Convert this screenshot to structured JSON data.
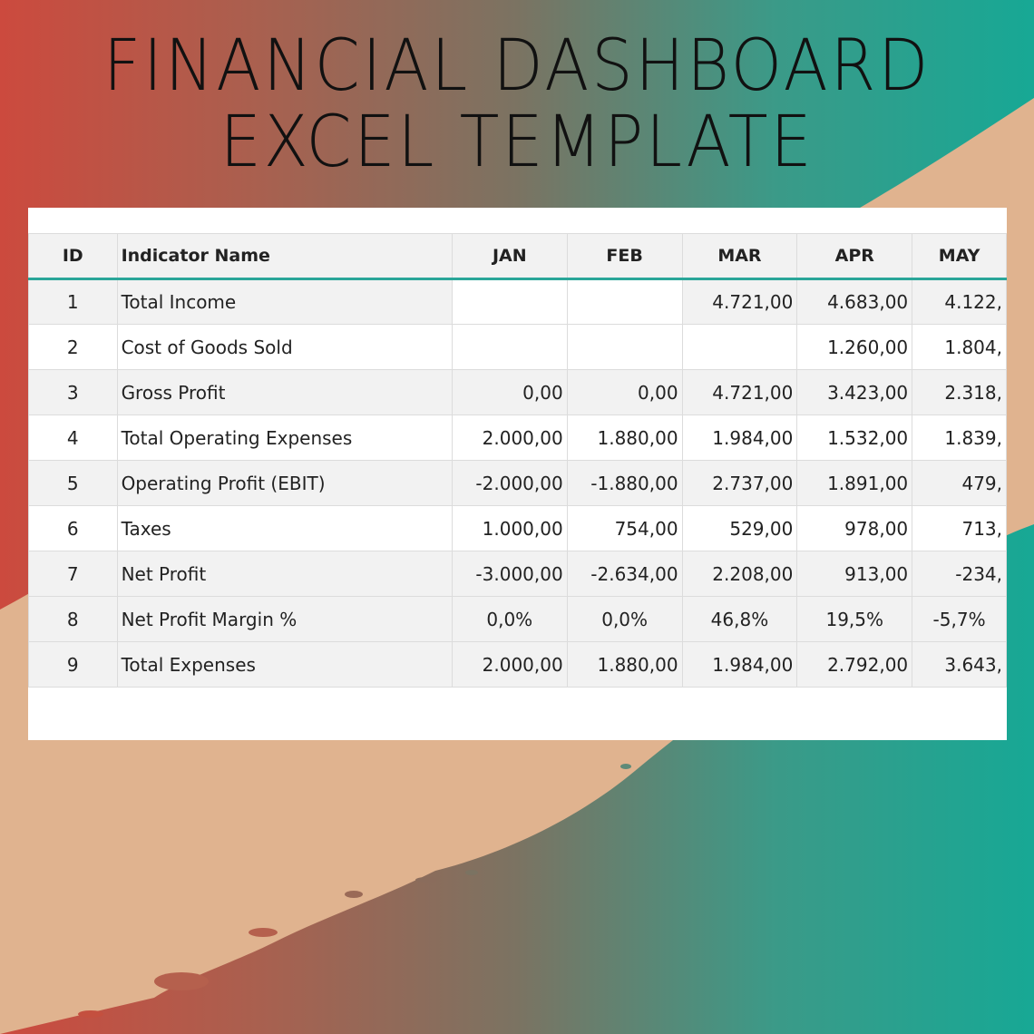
{
  "title_line1": "FINANCIAL DASHBOARD",
  "title_line2": "EXCEL TEMPLATE",
  "colors": {
    "accent": "#2aa699",
    "gradient_left": "#cc4a3e",
    "gradient_right": "#17a895",
    "brush": "#e0b38f"
  },
  "table": {
    "headers": [
      "ID",
      "Indicator Name",
      "JAN",
      "FEB",
      "MAR",
      "APR",
      "MAY"
    ],
    "rows": [
      {
        "id": "1",
        "name": "Total Income",
        "jan": "",
        "feb": "",
        "mar": "4.721,00",
        "apr": "4.683,00",
        "may": "4.122,"
      },
      {
        "id": "2",
        "name": "Cost of Goods Sold",
        "jan": "",
        "feb": "",
        "mar": "",
        "apr": "1.260,00",
        "may": "1.804,"
      },
      {
        "id": "3",
        "name": "Gross Profit",
        "jan": "0,00",
        "feb": "0,00",
        "mar": "4.721,00",
        "apr": "3.423,00",
        "may": "2.318,"
      },
      {
        "id": "4",
        "name": "Total Operating Expenses",
        "jan": "2.000,00",
        "feb": "1.880,00",
        "mar": "1.984,00",
        "apr": "1.532,00",
        "may": "1.839,"
      },
      {
        "id": "5",
        "name": "Operating Profit (EBIT)",
        "jan": "-2.000,00",
        "feb": "-1.880,00",
        "mar": "2.737,00",
        "apr": "1.891,00",
        "may": "479,"
      },
      {
        "id": "6",
        "name": "Taxes",
        "jan": "1.000,00",
        "feb": "754,00",
        "mar": "529,00",
        "apr": "978,00",
        "may": "713,"
      },
      {
        "id": "7",
        "name": "Net Profit",
        "jan": "-3.000,00",
        "feb": "-2.634,00",
        "mar": "2.208,00",
        "apr": "913,00",
        "may": "-234,"
      },
      {
        "id": "8",
        "name": "Net Profit Margin %",
        "jan": "0,0%",
        "feb": "0,0%",
        "mar": "46,8%",
        "apr": "19,5%",
        "may": "-5,7%"
      },
      {
        "id": "9",
        "name": "Total Expenses",
        "jan": "2.000,00",
        "feb": "1.880,00",
        "mar": "1.984,00",
        "apr": "2.792,00",
        "may": "3.643,"
      }
    ]
  }
}
